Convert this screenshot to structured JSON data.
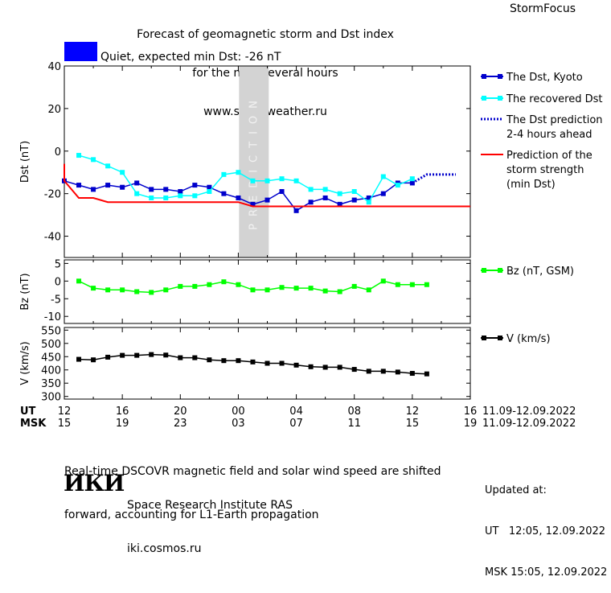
{
  "header": {
    "title_lines": [
      "Forecast of geomagnetic storm and Dst index",
      "for the next several hours",
      "www.spaceweather.ru"
    ],
    "brand": "StormFocus"
  },
  "status": {
    "text": "Quiet, expected min Dst: -26 nT",
    "color": "#0000ff"
  },
  "prediction_band": {
    "label": "PREDICTION",
    "x_start": 12.05,
    "x_end": 14.1,
    "color": "#d3d3d3"
  },
  "time_axis": {
    "ut_label": "UT",
    "msk_label": "MSK",
    "ut_ticks": [
      "12",
      "16",
      "20",
      "00",
      "04",
      "08",
      "12",
      "16"
    ],
    "msk_ticks": [
      "15",
      "19",
      "23",
      "03",
      "07",
      "11",
      "15",
      "19"
    ],
    "date_range_ut": "11.09-12.09.2022",
    "date_range_msk": "11.09-12.09.2022"
  },
  "chart_data": [
    {
      "type": "line",
      "ylabel": "Dst (nT)",
      "ylim": [
        -50,
        40
      ],
      "yticks": [
        40,
        20,
        0,
        -20,
        -40
      ],
      "xlim": [
        0,
        28
      ],
      "x_units": "hours since 11.09.2022 12:00 UT",
      "series": [
        {
          "name": "The Dst, Kyoto",
          "color": "#0000cc",
          "marker": "square",
          "x": [
            0,
            1,
            2,
            3,
            4,
            5,
            6,
            7,
            8,
            9,
            10,
            11,
            12,
            13,
            14,
            15,
            16,
            17,
            18,
            19,
            20,
            21,
            22,
            23,
            24
          ],
          "y": [
            -14,
            -16,
            -18,
            -16,
            -17,
            -15,
            -18,
            -18,
            -19,
            -16,
            -17,
            -20,
            -22,
            -25,
            -23,
            -19,
            -28,
            -24,
            -22,
            -25,
            -23,
            -22,
            -20,
            -15,
            -15
          ]
        },
        {
          "name": "The recovered Dst",
          "color": "#00ffff",
          "marker": "square",
          "x": [
            1,
            2,
            3,
            4,
            5,
            6,
            7,
            8,
            9,
            10,
            11,
            12,
            13,
            14,
            15,
            16,
            17,
            18,
            19,
            20,
            21,
            22,
            23,
            24
          ],
          "y": [
            -2,
            -4,
            -7,
            -10,
            -20,
            -22,
            -22,
            -21,
            -21,
            -19,
            -11,
            -10,
            -14,
            -14,
            -13,
            -14,
            -18,
            -18,
            -20,
            -19,
            -24,
            -12,
            -16,
            -13
          ]
        },
        {
          "name": "The Dst prediction 2-4 hours ahead",
          "color": "#0000cc",
          "style": "dotted",
          "x": [
            24,
            25,
            26,
            27
          ],
          "y": [
            -15,
            -11,
            -11,
            -11
          ]
        },
        {
          "name": "Prediction of the storm strength (min Dst)",
          "color": "#ff0000",
          "x": [
            -1,
            0,
            1,
            2,
            3,
            4,
            5,
            12,
            13,
            28
          ],
          "y": [
            -6,
            -14,
            -22,
            -22,
            -24,
            -24,
            -24,
            -24,
            -26,
            -26
          ]
        }
      ]
    },
    {
      "type": "line",
      "ylabel": "Bz (nT)",
      "ylim": [
        -12,
        6
      ],
      "yticks": [
        5,
        0,
        -5,
        -10
      ],
      "xlim": [
        0,
        28
      ],
      "series": [
        {
          "name": "Bz (nT, GSM)",
          "color": "#00ff00",
          "marker": "square",
          "x": [
            1,
            2,
            3,
            4,
            5,
            6,
            7,
            8,
            9,
            10,
            11,
            12,
            13,
            14,
            15,
            16,
            17,
            18,
            19,
            20,
            21,
            22,
            23,
            24,
            25
          ],
          "y": [
            0,
            -2,
            -2.5,
            -2.5,
            -3,
            -3.2,
            -2.5,
            -1.5,
            -1.5,
            -1,
            -0.2,
            -1,
            -2.5,
            -2.5,
            -1.8,
            -2,
            -2,
            -2.8,
            -3,
            -1.5,
            -2.5,
            0,
            -1,
            -1,
            -1
          ]
        }
      ]
    },
    {
      "type": "line",
      "ylabel": "V (km/s)",
      "ylim": [
        290,
        560
      ],
      "yticks": [
        550,
        500,
        450,
        400,
        350,
        300
      ],
      "xlim": [
        0,
        28
      ],
      "series": [
        {
          "name": "V (km/s)",
          "color": "#000000",
          "marker": "square",
          "x": [
            1,
            2,
            3,
            4,
            5,
            6,
            7,
            8,
            9,
            10,
            11,
            12,
            13,
            14,
            15,
            16,
            17,
            18,
            19,
            20,
            21,
            22,
            23,
            24,
            25
          ],
          "y": [
            440,
            438,
            448,
            455,
            455,
            458,
            456,
            446,
            446,
            438,
            435,
            435,
            430,
            425,
            425,
            418,
            412,
            410,
            410,
            402,
            395,
            395,
            392,
            387,
            385
          ]
        }
      ]
    }
  ],
  "footer": {
    "note_lines": [
      "Real-time DSCOVR magnetic field and solar wind speed are shifted",
      "forward, accounting for L1-Earth propagation"
    ],
    "logo_text": "ИКИ",
    "org_lines": [
      "Space Research Institute RAS",
      "iki.cosmos.ru"
    ],
    "updated_lines": [
      "Updated at:",
      "UT   12:05, 12.09.2022",
      "MSK 15:05, 12.09.2022"
    ]
  }
}
